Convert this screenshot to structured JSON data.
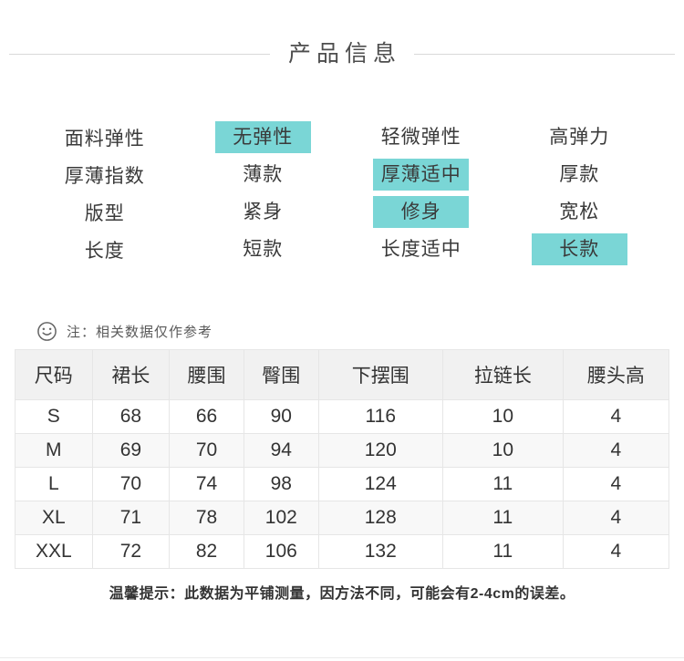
{
  "header": {
    "title": "产品信息"
  },
  "attributes": {
    "rows": [
      {
        "label": "面料弹性",
        "options": [
          "无弹性",
          "轻微弹性",
          "高弹力"
        ],
        "selected": "无弹性"
      },
      {
        "label": "厚薄指数",
        "options": [
          "薄款",
          "厚薄适中",
          "厚款"
        ],
        "selected": "厚薄适中"
      },
      {
        "label": "版型",
        "options": [
          "紧身",
          "修身",
          "宽松"
        ],
        "selected": "修身"
      },
      {
        "label": "长度",
        "options": [
          "短款",
          "长度适中",
          "长款"
        ],
        "selected": "长款"
      }
    ]
  },
  "note": {
    "icon": "smiley-icon",
    "text": "注：相关数据仅作参考"
  },
  "size_table": {
    "headers": [
      "尺码",
      "裙长",
      "腰围",
      "臀围",
      "下摆围",
      "拉链长",
      "腰头高"
    ],
    "rows": [
      [
        "S",
        "68",
        "66",
        "90",
        "116",
        "10",
        "4"
      ],
      [
        "M",
        "69",
        "70",
        "94",
        "120",
        "10",
        "4"
      ],
      [
        "L",
        "70",
        "74",
        "98",
        "124",
        "11",
        "4"
      ],
      [
        "XL",
        "71",
        "78",
        "102",
        "128",
        "11",
        "4"
      ],
      [
        "XXL",
        "72",
        "82",
        "106",
        "132",
        "11",
        "4"
      ]
    ]
  },
  "footer": {
    "tip": "温馨提示：此数据为平铺测量，因方法不同，可能会有2-4cm的误差。"
  },
  "colors": {
    "highlight": "#7ad6d6"
  }
}
